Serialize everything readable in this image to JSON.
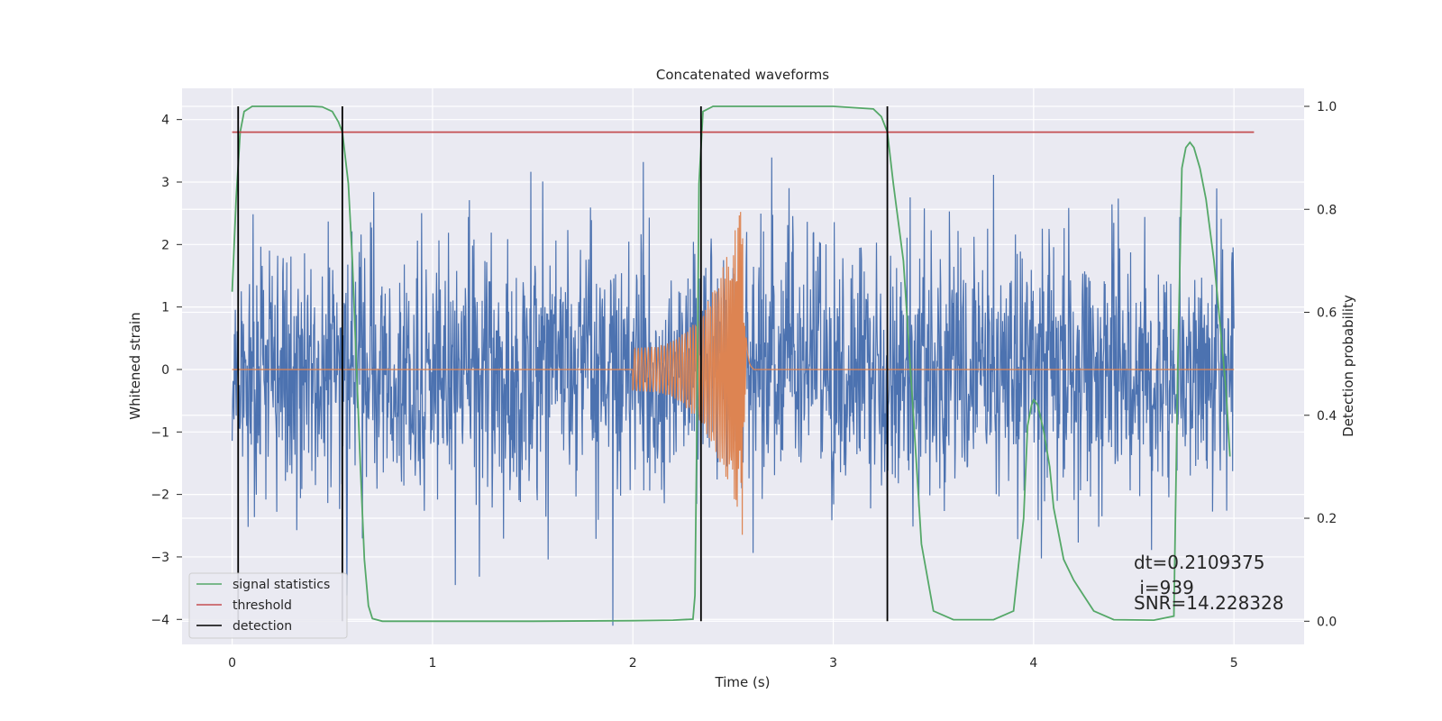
{
  "chart_data": {
    "type": "line",
    "title": "Concatenated waveforms",
    "xlabel": "Time (s)",
    "ylabel_left": "Whitened strain",
    "ylabel_right": "Detection probability",
    "xlim": [
      -0.25,
      5.35
    ],
    "ylim_left": [
      -4.4,
      4.5
    ],
    "ylim_right": [
      -0.045,
      1.035
    ],
    "x_ticks": [
      0,
      1,
      2,
      3,
      4,
      5
    ],
    "y_left_ticks": [
      -4,
      -3,
      -2,
      -1,
      0,
      1,
      2,
      3,
      4
    ],
    "y_right_ticks": [
      0.0,
      0.2,
      0.4,
      0.6,
      0.8,
      1.0
    ],
    "grid": true,
    "legend_position": "lower-left",
    "series": [
      {
        "name": "signal statistics",
        "axis": "right",
        "color": "#55a868",
        "x": [
          0.0,
          0.02,
          0.04,
          0.06,
          0.1,
          0.2,
          0.3,
          0.4,
          0.45,
          0.5,
          0.53,
          0.55,
          0.58,
          0.6,
          0.62,
          0.64,
          0.66,
          0.68,
          0.7,
          0.75,
          1.0,
          1.5,
          2.0,
          2.2,
          2.3,
          2.31,
          2.32,
          2.33,
          2.35,
          2.4,
          2.6,
          2.8,
          3.0,
          3.2,
          3.24,
          3.27,
          3.3,
          3.35,
          3.4,
          3.44,
          3.5,
          3.6,
          3.8,
          3.9,
          3.95,
          3.97,
          3.99,
          4.0,
          4.02,
          4.05,
          4.08,
          4.1,
          4.15,
          4.2,
          4.25,
          4.3,
          4.4,
          4.6,
          4.7,
          4.72,
          4.74,
          4.76,
          4.78,
          4.8,
          4.83,
          4.86,
          4.9,
          4.93,
          4.96,
          4.98
        ],
        "y": [
          0.64,
          0.82,
          0.95,
          0.99,
          1.0,
          1.0,
          1.0,
          1.0,
          0.999,
          0.99,
          0.97,
          0.95,
          0.85,
          0.7,
          0.5,
          0.3,
          0.12,
          0.03,
          0.005,
          0.0,
          0.0,
          0.0,
          0.001,
          0.002,
          0.004,
          0.05,
          0.4,
          0.85,
          0.99,
          1.0,
          1.0,
          1.0,
          1.0,
          0.995,
          0.98,
          0.95,
          0.85,
          0.7,
          0.4,
          0.15,
          0.02,
          0.003,
          0.003,
          0.02,
          0.2,
          0.38,
          0.42,
          0.43,
          0.42,
          0.37,
          0.3,
          0.22,
          0.12,
          0.08,
          0.05,
          0.02,
          0.003,
          0.002,
          0.01,
          0.5,
          0.88,
          0.92,
          0.93,
          0.92,
          0.88,
          0.82,
          0.7,
          0.58,
          0.45,
          0.32
        ]
      },
      {
        "name": "threshold",
        "axis": "right",
        "color": "#c44e52",
        "x": [
          0.0,
          5.1
        ],
        "y": [
          0.95,
          0.95
        ]
      }
    ],
    "detections": {
      "name": "detection",
      "color": "#000000",
      "x": [
        0.03,
        0.55,
        2.34,
        3.27
      ]
    },
    "background_series": [
      {
        "name": "strain",
        "axis": "left",
        "color": "#4c72b0",
        "x_range": [
          0,
          5
        ],
        "typical_amplitude": 1.0,
        "max_abs": 4.1
      },
      {
        "name": "waveform",
        "axis": "left",
        "color": "#dd8452",
        "x_start": 2.0,
        "x_peak": 2.55,
        "x_end": 2.6,
        "amplitude_start": 0.35,
        "amplitude_peak": 2.7
      }
    ],
    "annotations": [
      "dt=0.2109375",
      " i=939",
      "SNR=14.228328"
    ]
  }
}
